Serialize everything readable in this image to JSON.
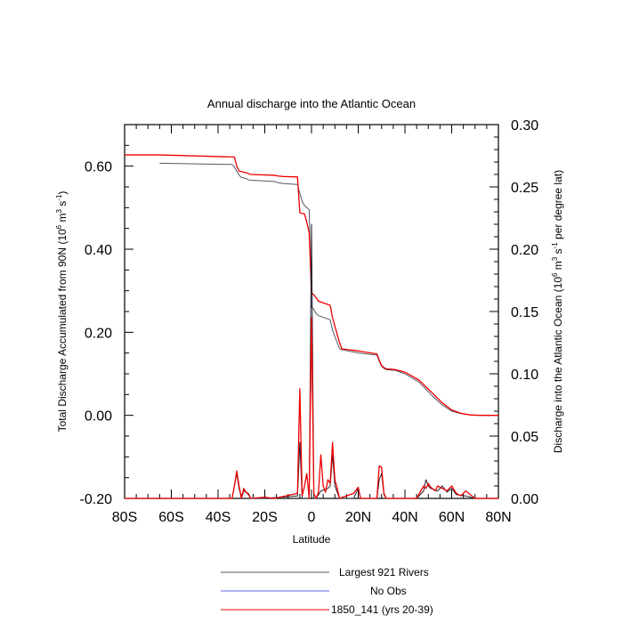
{
  "chart_data": {
    "type": "line",
    "title": "Annual discharge into the Atlantic Ocean",
    "xlabel": "Latitude",
    "ylabel_left": "Total Discharge Accumulated from 90N (10",
    "ylabel_left_sup": "6",
    "ylabel_left_mid": " m",
    "ylabel_left_sup2": "3",
    "ylabel_left_mid2": " s",
    "ylabel_left_sup3": "-1",
    "ylabel_left_end": ")",
    "ylabel_right": "Discharge into the Atlantic Ocean (10",
    "ylabel_right_sup": "6",
    "ylabel_right_mid": " m",
    "ylabel_right_sup2": "3",
    "ylabel_right_mid2": " s",
    "ylabel_right_sup3": "-1",
    "ylabel_right_end": " per degree lat)",
    "xlim": [
      -80,
      80
    ],
    "ylim_left": [
      -0.2,
      0.7
    ],
    "ylim_right": [
      0.0,
      0.3
    ],
    "x_ticks": [
      -80,
      -60,
      -40,
      -20,
      0,
      20,
      40,
      60,
      80
    ],
    "x_tick_labels": [
      "80S",
      "60S",
      "40S",
      "20S",
      "0",
      "20N",
      "40N",
      "60N",
      "80N"
    ],
    "y_left_ticks": [
      -0.2,
      0.0,
      0.2,
      0.4,
      0.6
    ],
    "y_left_tick_labels": [
      "-0.20",
      "0.00",
      "0.20",
      "0.40",
      "0.60"
    ],
    "y_right_ticks": [
      0.0,
      0.05,
      0.1,
      0.15,
      0.2,
      0.25,
      0.3
    ],
    "y_right_tick_labels": [
      "0.00",
      "0.05",
      "0.10",
      "0.15",
      "0.20",
      "0.25",
      "0.30"
    ],
    "legend_position": "bottom",
    "series": [
      {
        "name": "Largest 921 Rivers",
        "color": "#555566",
        "axis": "left",
        "x": [
          -65,
          -34,
          -33,
          -32,
          -31,
          -30,
          -28,
          -27,
          -26,
          -16,
          -14,
          -12,
          -6,
          -5,
          -4,
          -3,
          -1,
          0,
          1,
          2,
          3,
          8,
          9,
          10,
          11,
          12,
          13,
          20,
          28,
          29,
          30,
          31,
          32,
          36,
          40,
          46,
          52,
          56,
          60,
          64,
          68,
          72,
          80
        ],
        "values": [
          0.607,
          0.604,
          0.598,
          0.588,
          0.578,
          0.573,
          0.57,
          0.567,
          0.566,
          0.563,
          0.56,
          0.558,
          0.556,
          0.535,
          0.515,
          0.505,
          0.495,
          0.26,
          0.255,
          0.245,
          0.24,
          0.23,
          0.205,
          0.19,
          0.175,
          0.16,
          0.158,
          0.15,
          0.145,
          0.13,
          0.118,
          0.113,
          0.11,
          0.108,
          0.1,
          0.08,
          0.045,
          0.025,
          0.01,
          0.004,
          0.001,
          0.0,
          0.0
        ]
      },
      {
        "name": "No Obs",
        "color": "#6666ee",
        "axis": "left",
        "x": [],
        "values": []
      },
      {
        "name": "1850_141 (yrs 20-39)",
        "color": "#ee0000",
        "axis": "left",
        "x": [
          -80,
          -65,
          -33,
          -32,
          -31,
          -30,
          -28,
          -27,
          -26,
          -16,
          -14,
          -12,
          -6,
          -5,
          -4,
          -3,
          -2,
          -1,
          0,
          1,
          2,
          3,
          8,
          9,
          10,
          11,
          12,
          13,
          20,
          28,
          29,
          30,
          31,
          32,
          36,
          40,
          46,
          52,
          56,
          60,
          64,
          68,
          72,
          80
        ],
        "values": [
          0.627,
          0.627,
          0.622,
          0.6,
          0.588,
          0.587,
          0.584,
          0.582,
          0.58,
          0.578,
          0.576,
          0.575,
          0.574,
          0.488,
          0.486,
          0.485,
          0.465,
          0.44,
          0.295,
          0.29,
          0.283,
          0.275,
          0.265,
          0.235,
          0.215,
          0.195,
          0.175,
          0.16,
          0.155,
          0.148,
          0.133,
          0.12,
          0.115,
          0.112,
          0.11,
          0.104,
          0.085,
          0.052,
          0.03,
          0.013,
          0.005,
          0.001,
          0.0,
          0.0
        ]
      },
      {
        "name": "Largest 921 Rivers (per degree lat)",
        "color": "#222233",
        "axis": "right",
        "x": [
          -80,
          -34,
          -33,
          -32,
          -31,
          -30,
          -29,
          -27,
          -26,
          -20,
          -6,
          -5,
          -4,
          -3,
          -1,
          0,
          1,
          2,
          3,
          4,
          7,
          8,
          9,
          10,
          11,
          12,
          18,
          20,
          21,
          28,
          29,
          30,
          31,
          32,
          45,
          48,
          49,
          50,
          51,
          54,
          56,
          58,
          60,
          62,
          66,
          70,
          80
        ],
        "values": [
          0.0,
          0.0,
          0.01,
          0.02,
          0.008,
          0.0,
          0.006,
          0.004,
          0.0,
          0.0,
          0.002,
          0.045,
          0.0,
          0.0,
          0.0,
          0.22,
          0.0,
          0.0,
          0.003,
          0.006,
          0.008,
          0.01,
          0.035,
          0.01,
          0.005,
          0.0,
          0.0,
          0.008,
          0.0,
          0.0,
          0.015,
          0.02,
          0.003,
          0.0,
          0.0,
          0.006,
          0.015,
          0.01,
          0.008,
          0.006,
          0.01,
          0.005,
          0.008,
          0.003,
          0.002,
          0.0,
          0.0
        ]
      },
      {
        "name": "1850_141 (yrs 20-39) (per degree lat)",
        "color": "#ee0000",
        "axis": "right",
        "x": [
          -80,
          -34,
          -33,
          -32,
          -31,
          -30,
          -29,
          -28,
          -27,
          -26,
          -20,
          -16,
          -6,
          -5,
          -4,
          -3,
          -2,
          -1,
          0,
          1,
          2,
          3,
          4,
          5,
          6,
          7,
          8,
          9,
          10,
          11,
          12,
          18,
          20,
          21,
          28,
          29,
          30,
          31,
          32,
          45,
          48,
          49,
          50,
          51,
          53,
          54,
          56,
          58,
          60,
          62,
          64,
          66,
          70,
          80
        ],
        "values": [
          0.0,
          0.0,
          0.01,
          0.022,
          0.01,
          0.0,
          0.008,
          0.005,
          0.003,
          0.0,
          0.001,
          0.0,
          0.004,
          0.088,
          0.002,
          0.01,
          0.02,
          0.0,
          0.145,
          0.004,
          0.0,
          0.005,
          0.035,
          0.01,
          0.005,
          0.015,
          0.012,
          0.045,
          0.015,
          0.008,
          0.0,
          0.004,
          0.009,
          0.0,
          0.0,
          0.026,
          0.025,
          0.004,
          0.0,
          0.0,
          0.01,
          0.008,
          0.012,
          0.009,
          0.006,
          0.01,
          0.008,
          0.006,
          0.01,
          0.004,
          0.002,
          0.006,
          0.0,
          0.0
        ]
      }
    ]
  }
}
